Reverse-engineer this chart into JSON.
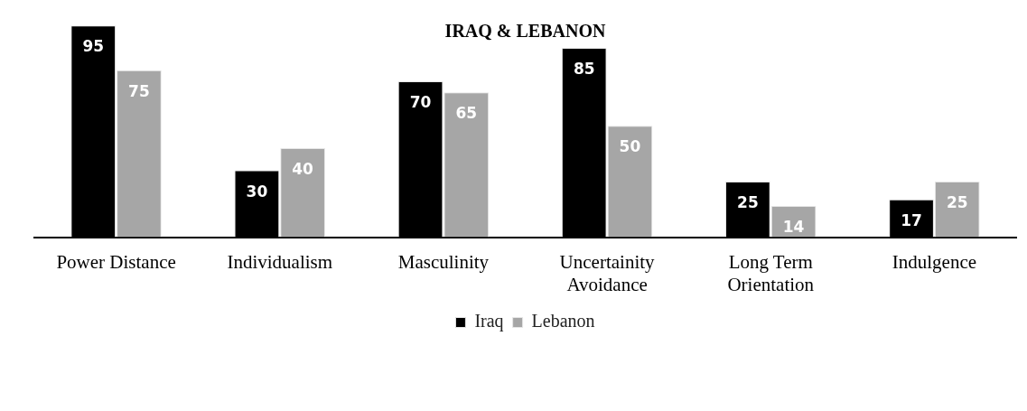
{
  "chart_data": {
    "type": "bar",
    "title": "IRAQ & LEBANON",
    "categories": [
      "Power Distance",
      "Individualism",
      "Masculinity",
      "Uncertainity Avoidance",
      "Long Term Orientation",
      "Indulgence"
    ],
    "series": [
      {
        "name": "Iraq",
        "color": "#000000",
        "values": [
          95,
          30,
          70,
          85,
          25,
          17
        ]
      },
      {
        "name": "Lebanon",
        "color": "#a6a6a6",
        "values": [
          75,
          40,
          65,
          50,
          14,
          25
        ]
      }
    ],
    "data_labels": true,
    "legend": "bottom"
  }
}
